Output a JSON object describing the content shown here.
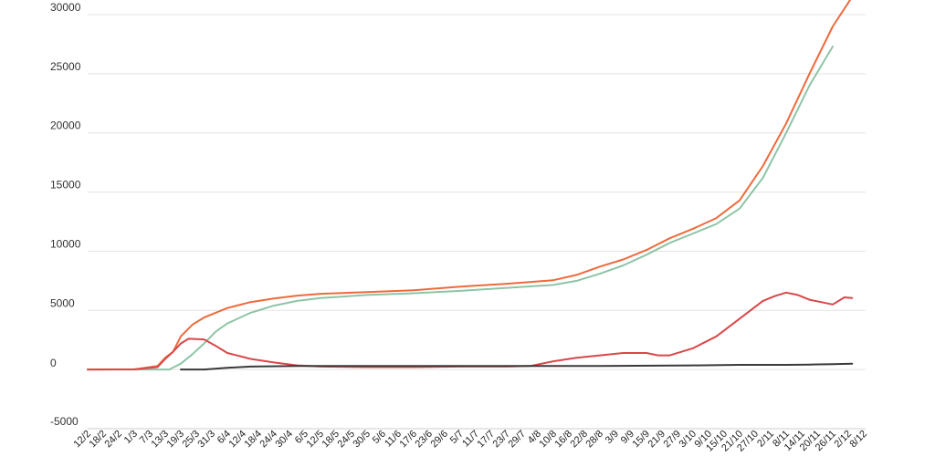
{
  "chart_data": {
    "type": "line",
    "title": "",
    "xlabel": "",
    "ylabel": "",
    "grid": true,
    "legend": "none",
    "ylim": [
      -5000,
      31000
    ],
    "yticks": [
      30000,
      25000,
      20000,
      15000,
      10000,
      5000,
      0,
      -5000
    ],
    "x_ticks": [
      "12/2",
      "18/2",
      "24/2",
      "1/3",
      "7/3",
      "13/3",
      "19/3",
      "25/3",
      "31/3",
      "6/4",
      "12/4",
      "18/4",
      "24/4",
      "30/4",
      "6/5",
      "12/5",
      "18/5",
      "24/5",
      "30/5",
      "5/6",
      "11/6",
      "17/6",
      "23/6",
      "29/6",
      "5/7",
      "11/7",
      "17/7",
      "23/7",
      "29/7",
      "4/8",
      "10/8",
      "16/8",
      "22/8",
      "28/8",
      "3/9",
      "9/9",
      "15/9",
      "21/9",
      "27/9",
      "3/10",
      "9/10",
      "15/10",
      "21/10",
      "27/10",
      "2/11",
      "8/11",
      "14/11",
      "20/11",
      "26/11",
      "2/12",
      "8/12"
    ],
    "series": [
      {
        "color": "#ee6a3c",
        "points": [
          [
            0,
            0
          ],
          [
            24,
            10
          ],
          [
            36,
            300
          ],
          [
            40,
            1000
          ],
          [
            44,
            1500
          ],
          [
            48,
            2800
          ],
          [
            54,
            3800
          ],
          [
            60,
            4400
          ],
          [
            72,
            5200
          ],
          [
            84,
            5700
          ],
          [
            96,
            6000
          ],
          [
            108,
            6250
          ],
          [
            120,
            6400
          ],
          [
            144,
            6550
          ],
          [
            168,
            6700
          ],
          [
            192,
            7000
          ],
          [
            216,
            7250
          ],
          [
            240,
            7550
          ],
          [
            252,
            8000
          ],
          [
            264,
            8700
          ],
          [
            276,
            9300
          ],
          [
            288,
            10100
          ],
          [
            300,
            11100
          ],
          [
            312,
            11900
          ],
          [
            324,
            12800
          ],
          [
            336,
            14300
          ],
          [
            348,
            17200
          ],
          [
            360,
            20800
          ],
          [
            372,
            25000
          ],
          [
            384,
            29000
          ],
          [
            394,
            31500
          ]
        ]
      },
      {
        "color": "#8ec4a6",
        "points": [
          [
            0,
            0
          ],
          [
            36,
            0
          ],
          [
            42,
            0
          ],
          [
            48,
            500
          ],
          [
            54,
            1300
          ],
          [
            60,
            2200
          ],
          [
            66,
            3200
          ],
          [
            72,
            3900
          ],
          [
            84,
            4800
          ],
          [
            96,
            5400
          ],
          [
            108,
            5800
          ],
          [
            120,
            6050
          ],
          [
            144,
            6300
          ],
          [
            168,
            6450
          ],
          [
            192,
            6650
          ],
          [
            216,
            6900
          ],
          [
            240,
            7150
          ],
          [
            252,
            7500
          ],
          [
            264,
            8100
          ],
          [
            276,
            8800
          ],
          [
            288,
            9700
          ],
          [
            300,
            10700
          ],
          [
            312,
            11500
          ],
          [
            324,
            12300
          ],
          [
            336,
            13600
          ],
          [
            348,
            16200
          ],
          [
            360,
            20000
          ],
          [
            372,
            24000
          ],
          [
            384,
            27300
          ]
        ]
      },
      {
        "color": "#d9474a",
        "points": [
          [
            0,
            0
          ],
          [
            24,
            10
          ],
          [
            36,
            200
          ],
          [
            40,
            900
          ],
          [
            44,
            1500
          ],
          [
            48,
            2200
          ],
          [
            52,
            2600
          ],
          [
            60,
            2550
          ],
          [
            66,
            2000
          ],
          [
            72,
            1400
          ],
          [
            84,
            900
          ],
          [
            96,
            600
          ],
          [
            108,
            350
          ],
          [
            120,
            250
          ],
          [
            144,
            200
          ],
          [
            168,
            200
          ],
          [
            192,
            250
          ],
          [
            216,
            250
          ],
          [
            228,
            300
          ],
          [
            240,
            700
          ],
          [
            252,
            1000
          ],
          [
            264,
            1200
          ],
          [
            276,
            1400
          ],
          [
            288,
            1400
          ],
          [
            294,
            1200
          ],
          [
            300,
            1200
          ],
          [
            312,
            1800
          ],
          [
            324,
            2800
          ],
          [
            336,
            4300
          ],
          [
            348,
            5800
          ],
          [
            354,
            6200
          ],
          [
            360,
            6500
          ],
          [
            366,
            6300
          ],
          [
            372,
            5900
          ],
          [
            378,
            5700
          ],
          [
            384,
            5500
          ],
          [
            390,
            6100
          ],
          [
            394,
            6050
          ]
        ]
      },
      {
        "color": "#3a3a3a",
        "points": [
          [
            48,
            0
          ],
          [
            60,
            0
          ],
          [
            72,
            150
          ],
          [
            84,
            250
          ],
          [
            108,
            300
          ],
          [
            144,
            300
          ],
          [
            168,
            300
          ],
          [
            216,
            300
          ],
          [
            264,
            300
          ],
          [
            312,
            350
          ],
          [
            336,
            400
          ],
          [
            360,
            400
          ],
          [
            372,
            420
          ],
          [
            384,
            450
          ],
          [
            394,
            500
          ]
        ]
      }
    ]
  }
}
